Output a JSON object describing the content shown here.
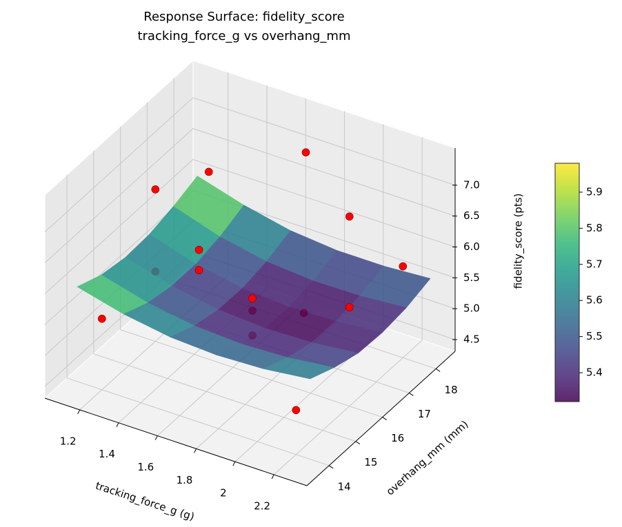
{
  "chart_data": {
    "type": "surface3d",
    "title": "Response Surface: fidelity_score",
    "subtitle": "tracking_force_g vs overhang_mm",
    "xlabel": "tracking_force_g (g)",
    "ylabel": "overhang_mm (mm)",
    "zlabel": "fidelity_score (pts)",
    "xlim": [
      1.02,
      2.37
    ],
    "ylim": [
      13.17,
      18.72
    ],
    "zlim": [
      4.31,
      7.6
    ],
    "xticks": [
      1.2,
      1.4,
      1.6,
      1.8,
      2.0,
      2.2
    ],
    "yticks": [
      14,
      15,
      16,
      17,
      18
    ],
    "zticks": [
      4.5,
      {
        "value": 5,
        "label": "5.0"
      },
      5.5,
      {
        "value": 6,
        "label": "6.0"
      },
      6.5,
      {
        "value": 7,
        "label": "7.0"
      }
    ],
    "surface": {
      "colormap": "viridis",
      "alpha": 0.85,
      "x": [
        1.1,
        1.34,
        1.58,
        1.82,
        2.06,
        2.3
      ],
      "y": [
        13.8,
        14.7,
        15.6,
        16.5,
        17.4,
        18.3
      ],
      "z": [
        [
          5.95,
          5.76,
          5.64,
          5.6,
          5.63,
          5.72
        ],
        [
          5.79,
          5.59,
          5.47,
          5.43,
          5.46,
          5.55
        ],
        [
          5.72,
          5.51,
          5.38,
          5.33,
          5.35,
          5.43
        ],
        [
          5.74,
          5.51,
          5.37,
          5.32,
          5.34,
          5.41
        ],
        [
          5.84,
          5.6,
          5.45,
          5.39,
          5.4,
          5.46
        ],
        [
          5.98,
          5.76,
          5.6,
          5.53,
          5.53,
          5.58
        ]
      ]
    },
    "scatter": {
      "color": "#ff0000",
      "x": [
        1.2,
        1.2,
        2.2,
        2.2,
        1.2,
        1.2,
        1.7,
        2.2,
        2.2,
        1.7,
        1.7,
        1.7,
        1.7,
        1.7,
        1.8
      ],
      "y": [
        14,
        18,
        14,
        18,
        16,
        16,
        18,
        16,
        16,
        14,
        14,
        16,
        16,
        16,
        17.2
      ],
      "z": [
        5.46,
        6.27,
        5.03,
        5.79,
        6.77,
        5.44,
        7.11,
        7.38,
        5.91,
        7.1,
        6.77,
        5.53,
        5.33,
        4.93,
        4.93
      ]
    },
    "colorbar": {
      "lim": [
        5.32,
        5.98
      ],
      "ticks": [
        5.4,
        5.5,
        5.6,
        5.7,
        5.8,
        5.9
      ]
    }
  }
}
